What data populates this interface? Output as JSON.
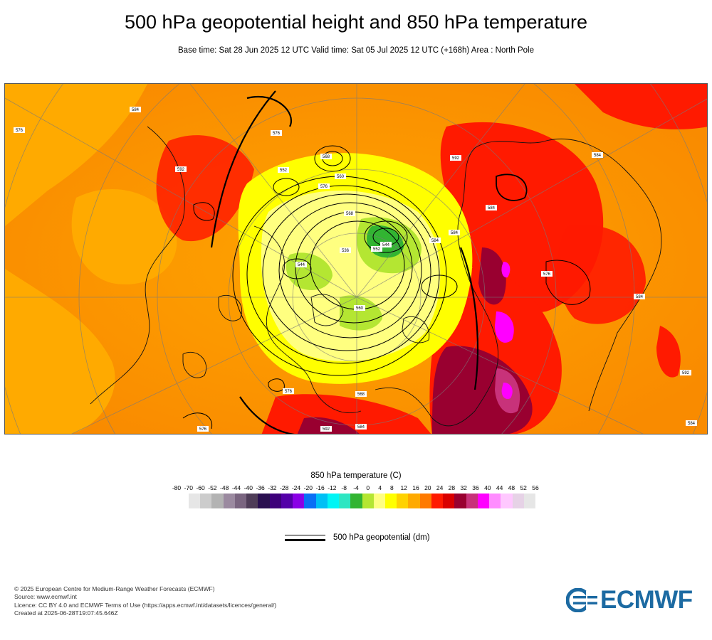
{
  "header": {
    "title": "500 hPa geopotential height and 850 hPa temperature",
    "subtitle": "Base time: Sat 28 Jun 2025 12 UTC Valid time: Sat 05 Jul 2025 12 UTC (+168h) Area : North Pole"
  },
  "map": {
    "area": "North Pole",
    "contour_labels": [
      "552",
      "568",
      "560",
      "576",
      "568",
      "576",
      "584",
      "552",
      "544",
      "536",
      "544",
      "560",
      "584",
      "592",
      "584",
      "576",
      "568",
      "584",
      "592",
      "576",
      "584",
      "592",
      "584",
      "576",
      "584",
      "592",
      "584",
      "576"
    ]
  },
  "legend": {
    "temperature": {
      "title": "850 hPa temperature (C)",
      "ticks": [
        "-80",
        "-70",
        "-60",
        "-52",
        "-48",
        "-44",
        "-40",
        "-36",
        "-32",
        "-28",
        "-24",
        "-20",
        "-16",
        "-12",
        "-8",
        "-4",
        "0",
        "4",
        "8",
        "12",
        "16",
        "20",
        "24",
        "28",
        "32",
        "36",
        "40",
        "44",
        "48",
        "52",
        "56"
      ],
      "colors": [
        "#e6e6e6",
        "#cccccc",
        "#b3b3b3",
        "#9b8aa0",
        "#7a6580",
        "#4f3d58",
        "#2a1050",
        "#3d007a",
        "#5400a8",
        "#8a00e6",
        "#0a6ff5",
        "#00c0f5",
        "#00f5f5",
        "#2ee6c2",
        "#32b432",
        "#b4e632",
        "#ffff80",
        "#ffff00",
        "#ffd200",
        "#ffaa00",
        "#ff7a00",
        "#ff1a00",
        "#d90000",
        "#990030",
        "#c8327a",
        "#ff00ff",
        "#ff8cff",
        "#ffc8ff",
        "#e6d2e6",
        "#e6e6e6"
      ]
    },
    "geopotential": {
      "label": "500 hPa geopotential (dm)"
    }
  },
  "footer": {
    "copyright": "© 2025 European Centre for Medium-Range Weather Forecasts (ECMWF)",
    "source": "Source: www.ecmwf.int",
    "licence": "Licence: CC BY 4.0 and ECMWF Terms of Use (https://apps.ecmwf.int/datasets/licences/general/)",
    "created": "Created at 2025-06-28T19:07:45.646Z"
  },
  "logo": {
    "text": "ECMWF",
    "color": "#1c6aa2"
  }
}
